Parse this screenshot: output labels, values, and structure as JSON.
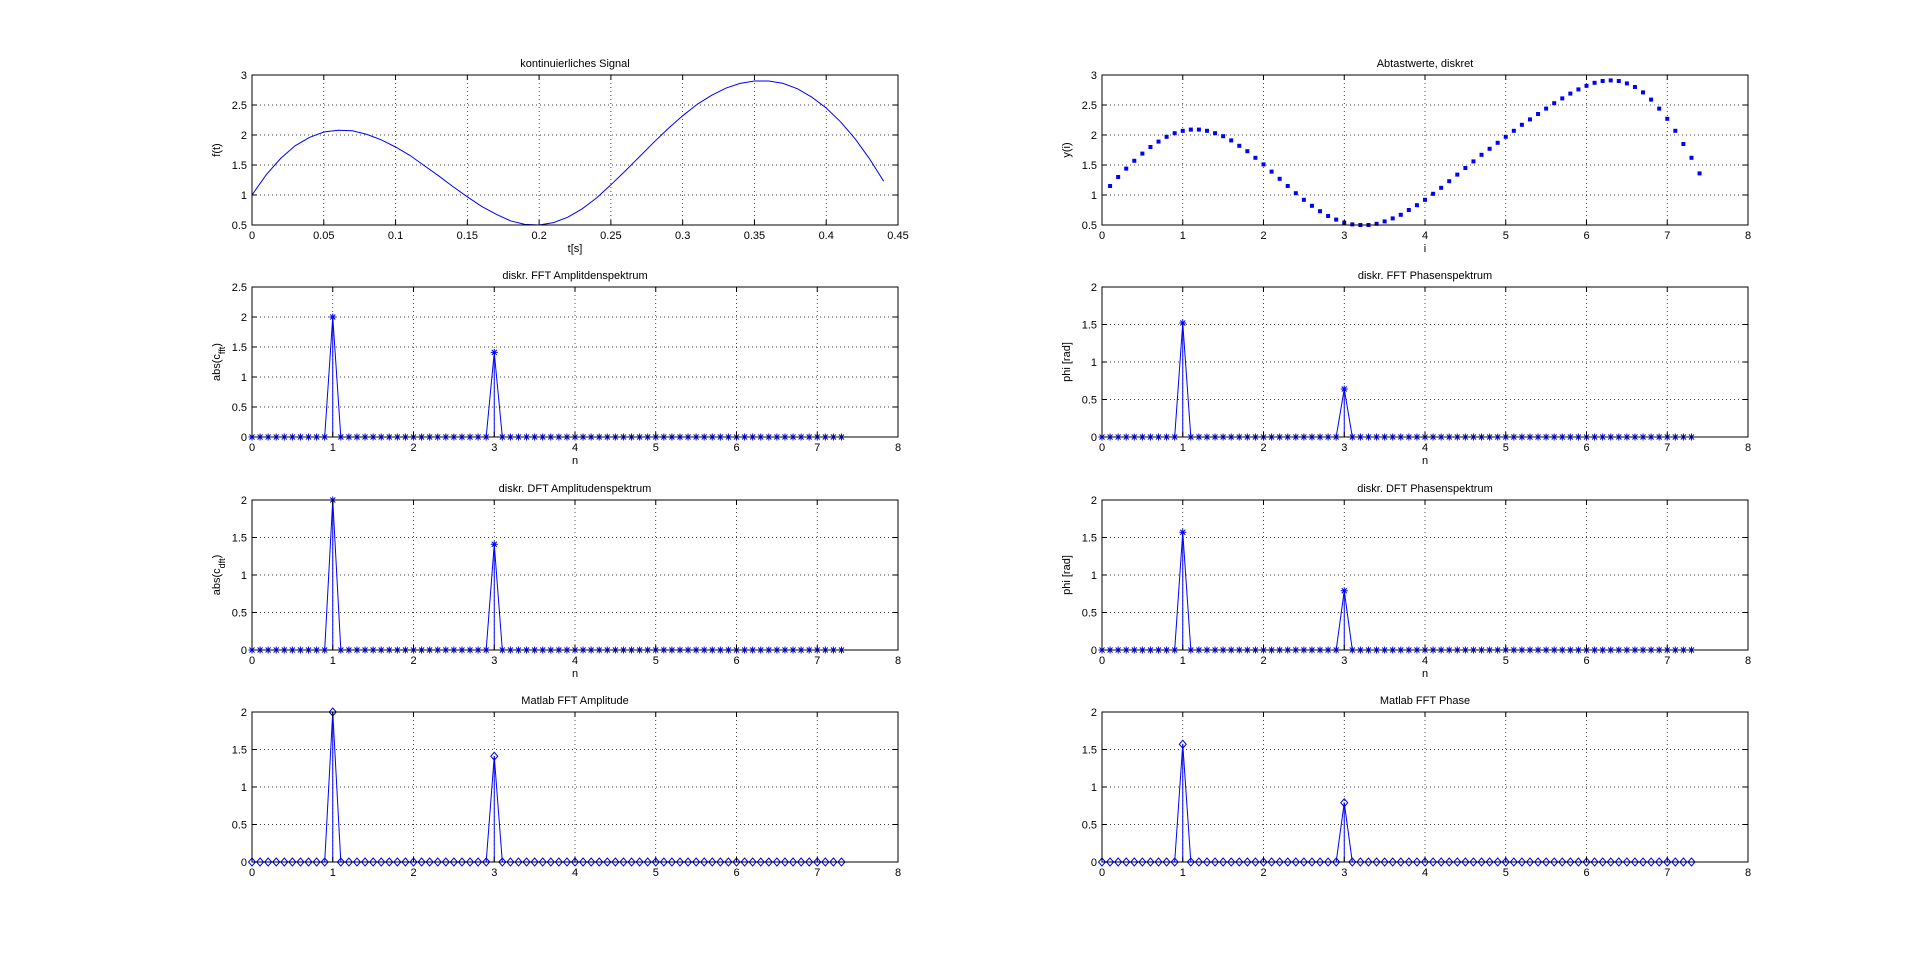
{
  "chart_data": [
    {
      "id": "p1",
      "type": "line",
      "title": "kontinuierliches Signal",
      "xlabel": "t[s]",
      "ylabel": "f(t)",
      "xlim": [
        0,
        0.45
      ],
      "ylim": [
        0.5,
        3
      ],
      "xticks": [
        0,
        0.05,
        0.1,
        0.15,
        0.2,
        0.25,
        0.3,
        0.35,
        0.4,
        0.45
      ],
      "xtick_labels": [
        "0",
        "0.05",
        "0.1",
        "0.15",
        "0.2",
        "0.25",
        "0.3",
        "0.35",
        "0.4",
        "0.45"
      ],
      "yticks": [
        0.5,
        1,
        1.5,
        2,
        2.5,
        3
      ],
      "ytick_labels": [
        "0.5",
        "1",
        "1.5",
        "2",
        "2.5",
        "3"
      ],
      "grid": true,
      "marker": "none",
      "series": [
        {
          "x": [
            0,
            0.01,
            0.02,
            0.03,
            0.04,
            0.05,
            0.06,
            0.07,
            0.08,
            0.09,
            0.1,
            0.11,
            0.12,
            0.13,
            0.14,
            0.15,
            0.16,
            0.17,
            0.18,
            0.19,
            0.2,
            0.21,
            0.22,
            0.23,
            0.24,
            0.25,
            0.26,
            0.27,
            0.28,
            0.29,
            0.3,
            0.31,
            0.32,
            0.33,
            0.34,
            0.35,
            0.36,
            0.37,
            0.38,
            0.39,
            0.4,
            0.41,
            0.42,
            0.43,
            0.44
          ],
          "y": [
            1,
            1.34,
            1.61,
            1.82,
            1.96,
            2.05,
            2.08,
            2.07,
            2.01,
            1.92,
            1.8,
            1.66,
            1.49,
            1.32,
            1.14,
            0.97,
            0.81,
            0.68,
            0.57,
            0.51,
            0.5,
            0.54,
            0.63,
            0.77,
            0.95,
            1.17,
            1.4,
            1.64,
            1.88,
            2.11,
            2.32,
            2.51,
            2.66,
            2.78,
            2.86,
            2.9,
            2.9,
            2.86,
            2.77,
            2.63,
            2.45,
            2.22,
            1.94,
            1.61,
            1.23
          ]
        }
      ]
    },
    {
      "id": "p2",
      "type": "scatter",
      "title": "Abtastwerte, diskret",
      "xlabel": "i",
      "ylabel": "y(i)",
      "xlim": [
        0,
        8
      ],
      "ylim": [
        0.5,
        3
      ],
      "xticks": [
        0,
        1,
        2,
        3,
        4,
        5,
        6,
        7,
        8
      ],
      "xtick_labels": [
        "0",
        "1",
        "2",
        "3",
        "4",
        "5",
        "6",
        "7",
        "8"
      ],
      "yticks": [
        0.5,
        1,
        1.5,
        2,
        2.5,
        3
      ],
      "ytick_labels": [
        "0.5",
        "1",
        "1.5",
        "2",
        "2.5",
        "3"
      ],
      "grid": true,
      "marker": "dot",
      "series": [
        {
          "x": [
            0.1,
            0.2,
            0.3,
            0.4,
            0.5,
            0.6,
            0.7,
            0.8,
            0.9,
            1.0,
            1.1,
            1.2,
            1.3,
            1.4,
            1.5,
            1.6,
            1.7,
            1.8,
            1.9,
            2.0,
            2.1,
            2.2,
            2.3,
            2.4,
            2.5,
            2.6,
            2.7,
            2.8,
            2.9,
            3.0,
            3.1,
            3.2,
            3.3,
            3.4,
            3.5,
            3.6,
            3.7,
            3.8,
            3.9,
            4.0,
            4.1,
            4.2,
            4.3,
            4.4,
            4.5,
            4.6,
            4.7,
            4.8,
            4.9,
            5.0,
            5.1,
            5.2,
            5.3,
            5.4,
            5.5,
            5.6,
            5.7,
            5.8,
            5.9,
            6.0,
            6.1,
            6.2,
            6.3,
            6.4,
            6.5,
            6.6,
            6.7,
            6.8,
            6.9,
            7.0,
            7.1,
            7.2,
            7.3,
            7.4
          ],
          "y": [
            1.15,
            1.3,
            1.44,
            1.57,
            1.69,
            1.8,
            1.89,
            1.97,
            2.03,
            2.07,
            2.09,
            2.09,
            2.07,
            2.03,
            1.98,
            1.91,
            1.82,
            1.73,
            1.62,
            1.51,
            1.39,
            1.27,
            1.15,
            1.03,
            0.92,
            0.82,
            0.73,
            0.65,
            0.59,
            0.54,
            0.51,
            0.5,
            0.5,
            0.52,
            0.56,
            0.61,
            0.67,
            0.75,
            0.83,
            0.92,
            1.02,
            1.12,
            1.23,
            1.34,
            1.45,
            1.56,
            1.67,
            1.77,
            1.87,
            1.97,
            2.07,
            2.17,
            2.26,
            2.35,
            2.44,
            2.53,
            2.61,
            2.69,
            2.76,
            2.82,
            2.87,
            2.9,
            2.91,
            2.9,
            2.86,
            2.8,
            2.71,
            2.59,
            2.44,
            2.27,
            2.07,
            1.85,
            1.62,
            1.36
          ]
        }
      ]
    },
    {
      "id": "p3",
      "type": "stem",
      "title": "diskr. FFT Amplitdenspektrum",
      "xlabel": "n",
      "ylabel": "abs(c_fft)",
      "ylabel_main": "abs(c",
      "ylabel_sub": "fft",
      "ylabel_end": ")",
      "xlim": [
        0,
        8
      ],
      "ylim": [
        0,
        2.5
      ],
      "xticks": [
        0,
        1,
        2,
        3,
        4,
        5,
        6,
        7,
        8
      ],
      "xtick_labels": [
        "0",
        "1",
        "2",
        "3",
        "4",
        "5",
        "6",
        "7",
        "8"
      ],
      "yticks": [
        0,
        0.5,
        1,
        1.5,
        2,
        2.5
      ],
      "ytick_labels": [
        "0",
        "0.5",
        "1",
        "1.5",
        "2",
        "2.5"
      ],
      "grid": true,
      "marker": "star",
      "n_points": 74,
      "step": 0.1,
      "peaks": [
        {
          "x": 1.0,
          "y": 2.0
        },
        {
          "x": 3.0,
          "y": 1.41
        }
      ]
    },
    {
      "id": "p4",
      "type": "stem",
      "title": "diskr. FFT Phasenspektrum",
      "xlabel": "n",
      "ylabel": "phi [rad]",
      "xlim": [
        0,
        8
      ],
      "ylim": [
        0,
        2
      ],
      "xticks": [
        0,
        1,
        2,
        3,
        4,
        5,
        6,
        7,
        8
      ],
      "xtick_labels": [
        "0",
        "1",
        "2",
        "3",
        "4",
        "5",
        "6",
        "7",
        "8"
      ],
      "yticks": [
        0,
        0.5,
        1,
        1.5,
        2
      ],
      "ytick_labels": [
        "0",
        "0.5",
        "1",
        "1.5",
        "2"
      ],
      "grid": true,
      "marker": "star",
      "n_points": 74,
      "step": 0.1,
      "peaks": [
        {
          "x": 1.0,
          "y": 1.52
        },
        {
          "x": 3.0,
          "y": 0.64
        }
      ]
    },
    {
      "id": "p5",
      "type": "stem",
      "title": "diskr. DFT Amplitudenspektrum",
      "xlabel": "n",
      "ylabel": "abs(c_dft)",
      "ylabel_main": "abs(c",
      "ylabel_sub": "dft",
      "ylabel_end": ")",
      "xlim": [
        0,
        8
      ],
      "ylim": [
        0,
        2
      ],
      "xticks": [
        0,
        1,
        2,
        3,
        4,
        5,
        6,
        7,
        8
      ],
      "xtick_labels": [
        "0",
        "1",
        "2",
        "3",
        "4",
        "5",
        "6",
        "7",
        "8"
      ],
      "yticks": [
        0,
        0.5,
        1,
        1.5,
        2
      ],
      "ytick_labels": [
        "0",
        "0.5",
        "1",
        "1.5",
        "2"
      ],
      "grid": true,
      "marker": "star",
      "n_points": 74,
      "step": 0.1,
      "peaks": [
        {
          "x": 1.0,
          "y": 2.0
        },
        {
          "x": 3.0,
          "y": 1.41
        }
      ]
    },
    {
      "id": "p6",
      "type": "stem",
      "title": "diskr. DFT Phasenspektrum",
      "xlabel": "n",
      "ylabel": "phi [rad]",
      "xlim": [
        0,
        8
      ],
      "ylim": [
        0,
        2
      ],
      "xticks": [
        0,
        1,
        2,
        3,
        4,
        5,
        6,
        7,
        8
      ],
      "xtick_labels": [
        "0",
        "1",
        "2",
        "3",
        "4",
        "5",
        "6",
        "7",
        "8"
      ],
      "yticks": [
        0,
        0.5,
        1,
        1.5,
        2
      ],
      "ytick_labels": [
        "0",
        "0.5",
        "1",
        "1.5",
        "2"
      ],
      "grid": true,
      "marker": "star",
      "n_points": 74,
      "step": 0.1,
      "peaks": [
        {
          "x": 1.0,
          "y": 1.57
        },
        {
          "x": 3.0,
          "y": 0.79
        }
      ]
    },
    {
      "id": "p7",
      "type": "stem",
      "title": "Matlab FFT Amplitude",
      "xlabel": "",
      "ylabel": "",
      "xlim": [
        0,
        8
      ],
      "ylim": [
        0,
        2
      ],
      "xticks": [
        0,
        1,
        2,
        3,
        4,
        5,
        6,
        7,
        8
      ],
      "xtick_labels": [
        "0",
        "1",
        "2",
        "3",
        "4",
        "5",
        "6",
        "7",
        "8"
      ],
      "yticks": [
        0,
        0.5,
        1,
        1.5,
        2
      ],
      "ytick_labels": [
        "0",
        "0.5",
        "1",
        "1.5",
        "2"
      ],
      "grid": true,
      "marker": "diamond",
      "n_points": 74,
      "step": 0.1,
      "peaks": [
        {
          "x": 1.0,
          "y": 2.0
        },
        {
          "x": 3.0,
          "y": 1.41
        }
      ]
    },
    {
      "id": "p8",
      "type": "stem",
      "title": "Matlab FFT Phase",
      "xlabel": "",
      "ylabel": "",
      "xlim": [
        0,
        8
      ],
      "ylim": [
        0,
        2
      ],
      "xticks": [
        0,
        1,
        2,
        3,
        4,
        5,
        6,
        7,
        8
      ],
      "xtick_labels": [
        "0",
        "1",
        "2",
        "3",
        "4",
        "5",
        "6",
        "7",
        "8"
      ],
      "yticks": [
        0,
        0.5,
        1,
        1.5,
        2
      ],
      "ytick_labels": [
        "0",
        "0.5",
        "1",
        "1.5",
        "2"
      ],
      "grid": true,
      "marker": "diamond",
      "n_points": 74,
      "step": 0.1,
      "peaks": [
        {
          "x": 1.0,
          "y": 1.57
        },
        {
          "x": 3.0,
          "y": 0.79
        }
      ]
    }
  ],
  "colors": {
    "series": "#0000ff",
    "axes": "#000000",
    "grid": "#000000",
    "background": "#ffffff"
  }
}
